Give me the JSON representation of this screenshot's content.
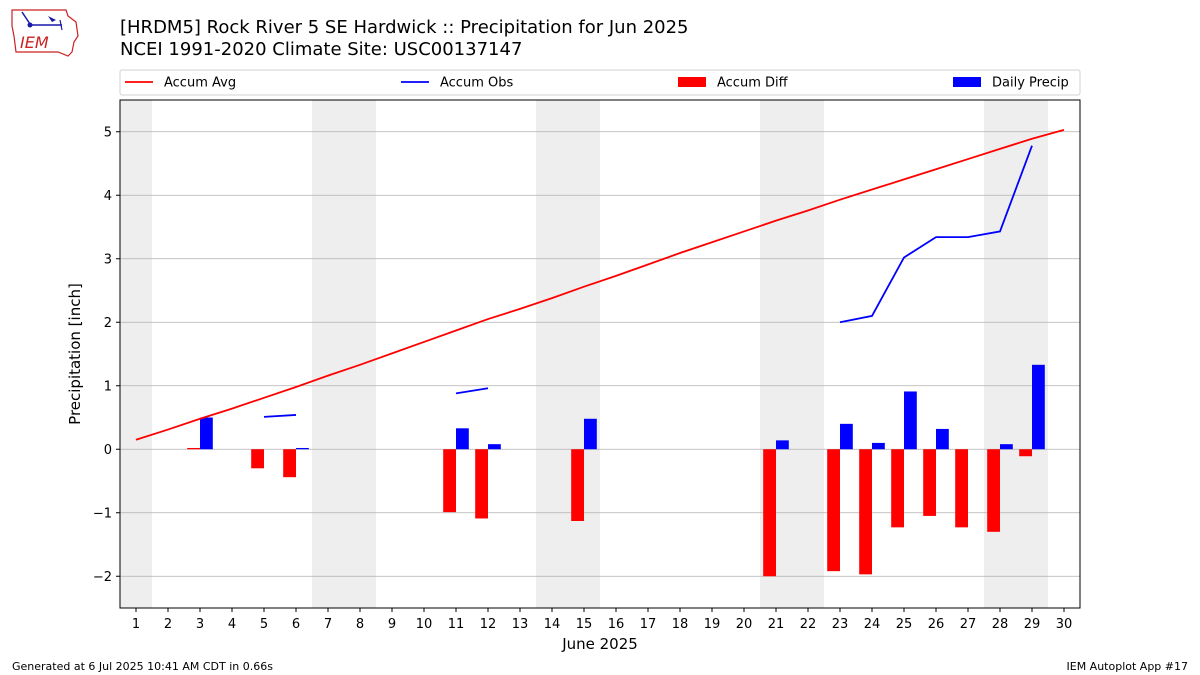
{
  "title_line1": "[HRDM5] Rock River 5 SE Hardwick :: Precipitation for Jun 2025",
  "title_line2": "NCEI 1991-2020 Climate Site: USC00137147",
  "footer_left": "Generated at 6 Jul 2025 10:41 AM CDT in 0.66s",
  "footer_right": "IEM Autoplot App #17",
  "logo_text": "IEM",
  "colors": {
    "avg": "#ff0000",
    "obs": "#0000ff",
    "diff": "#ff0000",
    "daily": "#0000ff",
    "weekend": "#eeeeee",
    "grid": "#b0b0b0"
  },
  "chart_data": {
    "type": "bar",
    "xlabel": "June 2025",
    "ylabel": "Precipitation [inch]",
    "xlim": [
      0.5,
      30.5
    ],
    "ylim": [
      -2.5,
      5.5
    ],
    "yticks": [
      -2,
      -1,
      0,
      1,
      2,
      3,
      4,
      5
    ],
    "ytick_labels": [
      "−2",
      "−1",
      "0",
      "1",
      "2",
      "3",
      "4",
      "5"
    ],
    "xticks": [
      1,
      2,
      3,
      4,
      5,
      6,
      7,
      8,
      9,
      10,
      11,
      12,
      13,
      14,
      15,
      16,
      17,
      18,
      19,
      20,
      21,
      22,
      23,
      24,
      25,
      26,
      27,
      28,
      29,
      30
    ],
    "grid": "y",
    "legend_position": "top",
    "legend": [
      "Accum Avg",
      "Accum Obs",
      "Accum Diff",
      "Daily Precip"
    ],
    "weekend_spans": [
      [
        0.5,
        1.5
      ],
      [
        6.5,
        8.5
      ],
      [
        13.5,
        15.5
      ],
      [
        20.5,
        22.5
      ],
      [
        27.5,
        29.5
      ]
    ],
    "series": [
      {
        "name": "Accum Avg",
        "kind": "line",
        "x": [
          1,
          2,
          3,
          4,
          5,
          6,
          7,
          8,
          9,
          10,
          11,
          12,
          13,
          14,
          15,
          16,
          17,
          18,
          19,
          20,
          21,
          22,
          23,
          24,
          25,
          26,
          27,
          28,
          29,
          30
        ],
        "values": [
          0.15,
          0.31,
          0.48,
          0.64,
          0.81,
          0.98,
          1.16,
          1.33,
          1.51,
          1.69,
          1.87,
          2.05,
          2.21,
          2.38,
          2.56,
          2.73,
          2.91,
          3.09,
          3.26,
          3.43,
          3.6,
          3.76,
          3.93,
          4.09,
          4.25,
          4.41,
          4.57,
          4.73,
          4.89,
          5.03
        ]
      },
      {
        "name": "Accum Obs",
        "kind": "line",
        "segments": [
          {
            "x": [
              5,
              6
            ],
            "values": [
              0.51,
              0.54
            ]
          },
          {
            "x": [
              11,
              12
            ],
            "values": [
              0.88,
              0.96
            ]
          },
          {
            "x": [
              23,
              24,
              25,
              26,
              27,
              28,
              29
            ],
            "values": [
              2.0,
              2.1,
              3.02,
              3.34,
              3.34,
              3.43,
              4.78
            ]
          }
        ]
      },
      {
        "name": "Accum Diff",
        "kind": "bar",
        "x": [
          3,
          5,
          6,
          11,
          12,
          15,
          21,
          23,
          24,
          25,
          26,
          27,
          28,
          29
        ],
        "values": [
          0.02,
          -0.3,
          -0.44,
          -0.99,
          -1.09,
          -1.13,
          -2.0,
          -1.92,
          -1.97,
          -1.23,
          -1.05,
          -1.23,
          -1.3,
          -0.11
        ]
      },
      {
        "name": "Daily Precip",
        "kind": "bar",
        "x": [
          3,
          6,
          11,
          12,
          15,
          21,
          23,
          24,
          25,
          26,
          28,
          29
        ],
        "values": [
          0.5,
          0.02,
          0.33,
          0.08,
          0.48,
          0.14,
          0.4,
          0.1,
          0.91,
          0.32,
          0.08,
          1.33
        ]
      }
    ]
  }
}
